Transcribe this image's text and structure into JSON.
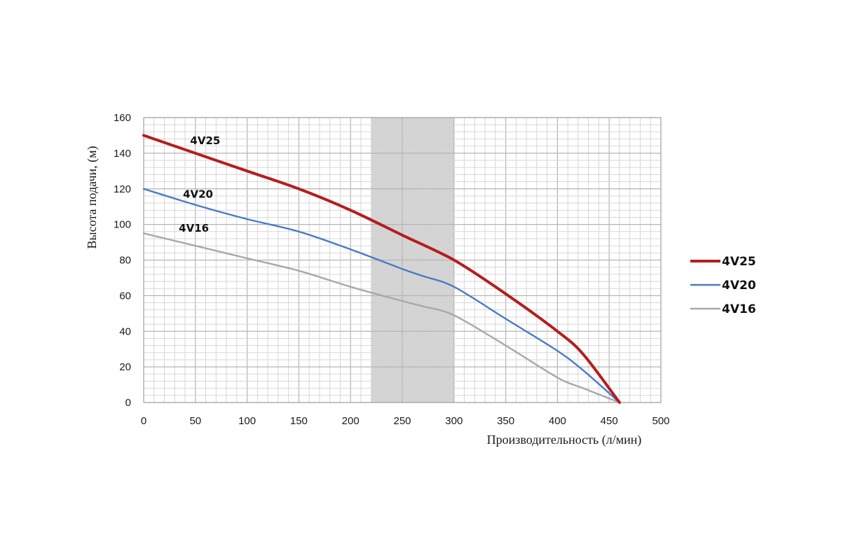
{
  "chart_data": {
    "type": "line",
    "xlabel": "Производительность (л/мин)",
    "ylabel": "Высота подачи, (м)",
    "xlim": [
      0,
      500
    ],
    "ylim": [
      0,
      160
    ],
    "x_ticks": [
      0,
      50,
      100,
      150,
      200,
      250,
      300,
      350,
      400,
      450,
      500
    ],
    "y_ticks": [
      0,
      20,
      40,
      60,
      80,
      100,
      120,
      140,
      160
    ],
    "x_minor_step": 10,
    "y_minor_step": 4,
    "grid": true,
    "highlight_band": {
      "x_from": 220,
      "x_to": 300,
      "color": "#d4d4d4"
    },
    "legend_position": "right",
    "series": [
      {
        "name": "4V25",
        "color": "#b41e1e",
        "x": [
          0,
          50,
          100,
          150,
          200,
          250,
          300,
          350,
          400,
          425,
          460
        ],
        "y": [
          150,
          140,
          130,
          120,
          108,
          94,
          80,
          61,
          40,
          27,
          0
        ]
      },
      {
        "name": "4V20",
        "color": "#4a7cc6",
        "x": [
          0,
          50,
          100,
          150,
          200,
          250,
          270,
          300,
          350,
          400,
          425,
          460
        ],
        "y": [
          120,
          111,
          103,
          96,
          86,
          75,
          71,
          65,
          47,
          29,
          18,
          0
        ]
      },
      {
        "name": "4V16",
        "color": "#a8a8a8",
        "x": [
          0,
          50,
          100,
          150,
          200,
          250,
          270,
          300,
          350,
          400,
          425,
          460
        ],
        "y": [
          95,
          88,
          81,
          74,
          65,
          57,
          54,
          49,
          32,
          14,
          8,
          0
        ]
      }
    ]
  },
  "inline_labels": [
    {
      "text": "4V25",
      "x": 45,
      "y": 145
    },
    {
      "text": "4V20",
      "x": 38,
      "y": 115
    },
    {
      "text": "4V16",
      "x": 34,
      "y": 96
    }
  ]
}
